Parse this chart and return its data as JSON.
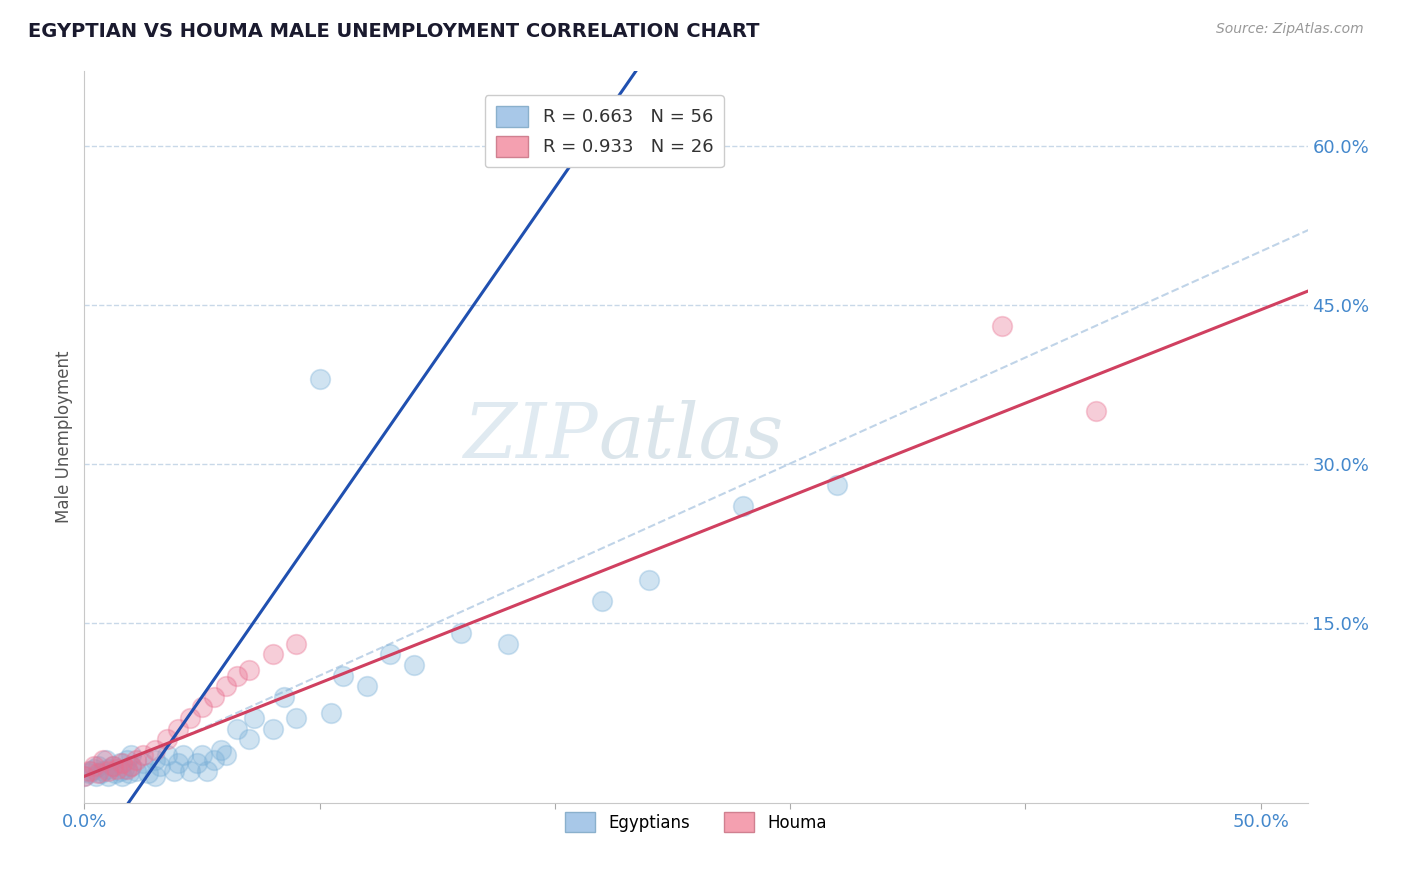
{
  "title": "EGYPTIAN VS HOUMA MALE UNEMPLOYMENT CORRELATION CHART",
  "source": "Source: ZipAtlas.com",
  "ylabel": "Male Unemployment",
  "xlim": [
    0.0,
    0.52
  ],
  "ylim": [
    -0.02,
    0.67
  ],
  "ytick_positions": [
    0.15,
    0.3,
    0.45,
    0.6
  ],
  "ytick_labels": [
    "15.0%",
    "30.0%",
    "45.0%",
    "60.0%"
  ],
  "legend_r1": "R = 0.663   N = 56",
  "legend_r2": "R = 0.933   N = 26",
  "legend_color1": "#a8c8e8",
  "legend_color2": "#f4a0b0",
  "scatter_color1": "#7ab0d8",
  "scatter_color2": "#e87090",
  "watermark_zip": "ZIP",
  "watermark_atlas": "atlas",
  "scatter_size": 200,
  "scatter_alpha": 0.35,
  "line_color_blue": "#2050b0",
  "line_color_pink": "#d04060",
  "diag_color": "#c0d4e8",
  "blue_slope": 3.2,
  "blue_intercept": -0.08,
  "pink_slope": 0.88,
  "pink_intercept": 0.005,
  "egyptians_x": [
    0.0,
    0.002,
    0.003,
    0.004,
    0.005,
    0.006,
    0.007,
    0.008,
    0.009,
    0.01,
    0.01,
    0.012,
    0.013,
    0.015,
    0.015,
    0.016,
    0.017,
    0.018,
    0.019,
    0.02,
    0.02,
    0.022,
    0.025,
    0.027,
    0.03,
    0.03,
    0.032,
    0.035,
    0.038,
    0.04,
    0.042,
    0.045,
    0.048,
    0.05,
    0.052,
    0.055,
    0.058,
    0.06,
    0.065,
    0.07,
    0.072,
    0.08,
    0.085,
    0.09,
    0.1,
    0.105,
    0.11,
    0.12,
    0.13,
    0.14,
    0.16,
    0.18,
    0.22,
    0.24,
    0.28,
    0.32
  ],
  "egyptians_y": [
    0.005,
    0.008,
    0.01,
    0.012,
    0.005,
    0.015,
    0.008,
    0.01,
    0.02,
    0.005,
    0.012,
    0.015,
    0.008,
    0.01,
    0.018,
    0.005,
    0.012,
    0.02,
    0.008,
    0.015,
    0.025,
    0.01,
    0.018,
    0.008,
    0.02,
    0.005,
    0.015,
    0.025,
    0.01,
    0.018,
    0.025,
    0.01,
    0.018,
    0.025,
    0.01,
    0.02,
    0.03,
    0.025,
    0.05,
    0.04,
    0.06,
    0.05,
    0.08,
    0.06,
    0.38,
    0.065,
    0.1,
    0.09,
    0.12,
    0.11,
    0.14,
    0.13,
    0.17,
    0.19,
    0.26,
    0.28
  ],
  "houma_x": [
    0.0,
    0.002,
    0.004,
    0.006,
    0.008,
    0.01,
    0.012,
    0.014,
    0.016,
    0.018,
    0.02,
    0.022,
    0.025,
    0.03,
    0.035,
    0.04,
    0.045,
    0.05,
    0.055,
    0.06,
    0.065,
    0.07,
    0.08,
    0.09,
    0.39,
    0.43
  ],
  "houma_y": [
    0.005,
    0.01,
    0.015,
    0.008,
    0.02,
    0.01,
    0.015,
    0.012,
    0.018,
    0.012,
    0.015,
    0.02,
    0.025,
    0.03,
    0.04,
    0.05,
    0.06,
    0.07,
    0.08,
    0.09,
    0.1,
    0.105,
    0.12,
    0.13,
    0.43,
    0.35
  ]
}
